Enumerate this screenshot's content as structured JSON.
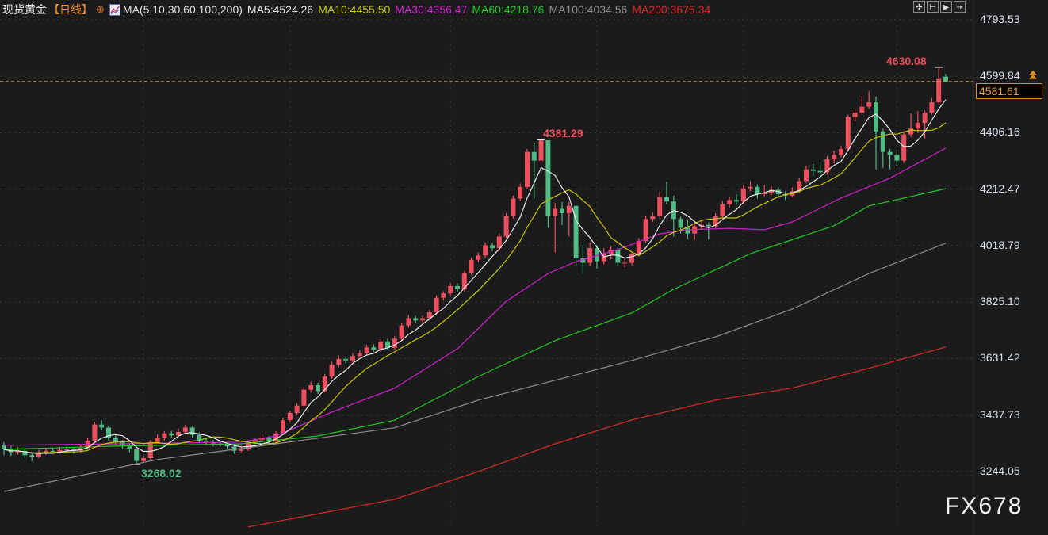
{
  "header": {
    "symbol": "现货黄金",
    "period": "【日线】",
    "settings_icon": "crosshair-circle-icon",
    "ma_icon": "indicator-chart-icon",
    "ma_params": "MA(5,10,30,60,100,200)",
    "ma5": "MA5:4524.26",
    "ma10": "MA10:4455.50",
    "ma30": "MA30:4356.47",
    "ma60": "MA60:4218.76",
    "ma100": "MA100:4034.56",
    "ma200": "MA200:3675.34"
  },
  "toolbar": {
    "icons": [
      "crosshair-icon",
      "zoom-range-icon",
      "play-forward-icon",
      "jump-to-end-icon"
    ]
  },
  "colors": {
    "background": "#1b1b1b",
    "up": "#ee4f5f",
    "down": "#4fba84",
    "ma5": "#e8e8e8",
    "ma10": "#c8c400",
    "ma30": "#d21ed2",
    "ma60": "#1ec81e",
    "ma100": "#8c8c8c",
    "ma200": "#e02828",
    "price_line": "#e09020"
  },
  "watermark": "FX678",
  "chart_data": {
    "type": "candlestick",
    "title": "",
    "ylim": [
      3059,
      4861
    ],
    "grid": true,
    "y_ticks": [
      "4793.53",
      "4599.84",
      "4406.16",
      "4212.47",
      "4018.79",
      "3825.10",
      "3631.42",
      "3437.73",
      "3244.05"
    ],
    "current_price": "4581.61",
    "annotations": {
      "high_peak1": "4381.29",
      "low": "3268.02",
      "high_latest": "4630.08"
    },
    "candles_ohlc": [
      [
        3335,
        3345,
        3300,
        3320
      ],
      [
        3320,
        3332,
        3298,
        3310
      ],
      [
        3310,
        3328,
        3302,
        3315
      ],
      [
        3315,
        3322,
        3290,
        3300
      ],
      [
        3300,
        3310,
        3280,
        3295
      ],
      [
        3295,
        3318,
        3290,
        3310
      ],
      [
        3310,
        3325,
        3302,
        3315
      ],
      [
        3315,
        3322,
        3305,
        3312
      ],
      [
        3312,
        3328,
        3306,
        3318
      ],
      [
        3318,
        3330,
        3310,
        3320
      ],
      [
        3320,
        3326,
        3306,
        3316
      ],
      [
        3316,
        3334,
        3310,
        3325
      ],
      [
        3325,
        3360,
        3320,
        3350
      ],
      [
        3350,
        3415,
        3345,
        3405
      ],
      [
        3405,
        3420,
        3385,
        3395
      ],
      [
        3395,
        3402,
        3350,
        3360
      ],
      [
        3360,
        3370,
        3335,
        3345
      ],
      [
        3345,
        3352,
        3322,
        3330
      ],
      [
        3330,
        3338,
        3310,
        3320
      ],
      [
        3320,
        3325,
        3268.02,
        3280
      ],
      [
        3280,
        3300,
        3275,
        3290
      ],
      [
        3290,
        3352,
        3285,
        3345
      ],
      [
        3345,
        3372,
        3340,
        3360
      ],
      [
        3360,
        3382,
        3350,
        3375
      ],
      [
        3375,
        3384,
        3360,
        3368
      ],
      [
        3368,
        3392,
        3362,
        3380
      ],
      [
        3380,
        3405,
        3372,
        3395
      ],
      [
        3395,
        3400,
        3362,
        3370
      ],
      [
        3370,
        3378,
        3342,
        3350
      ],
      [
        3350,
        3360,
        3335,
        3345
      ],
      [
        3345,
        3352,
        3330,
        3340
      ],
      [
        3340,
        3350,
        3330,
        3338
      ],
      [
        3338,
        3346,
        3322,
        3330
      ],
      [
        3330,
        3338,
        3305,
        3315
      ],
      [
        3315,
        3330,
        3308,
        3320
      ],
      [
        3320,
        3352,
        3315,
        3345
      ],
      [
        3345,
        3360,
        3338,
        3352
      ],
      [
        3352,
        3372,
        3345,
        3360
      ],
      [
        3360,
        3366,
        3340,
        3348
      ],
      [
        3348,
        3382,
        3342,
        3375
      ],
      [
        3375,
        3428,
        3370,
        3420
      ],
      [
        3420,
        3452,
        3412,
        3445
      ],
      [
        3445,
        3478,
        3438,
        3470
      ],
      [
        3470,
        3535,
        3462,
        3525
      ],
      [
        3525,
        3552,
        3515,
        3540
      ],
      [
        3540,
        3548,
        3510,
        3520
      ],
      [
        3520,
        3578,
        3515,
        3570
      ],
      [
        3570,
        3620,
        3562,
        3610
      ],
      [
        3610,
        3642,
        3602,
        3630
      ],
      [
        3630,
        3640,
        3615,
        3625
      ],
      [
        3625,
        3650,
        3618,
        3640
      ],
      [
        3640,
        3660,
        3632,
        3650
      ],
      [
        3650,
        3678,
        3645,
        3670
      ],
      [
        3670,
        3680,
        3655,
        3662
      ],
      [
        3662,
        3698,
        3655,
        3690
      ],
      [
        3690,
        3700,
        3660,
        3668
      ],
      [
        3668,
        3708,
        3662,
        3700
      ],
      [
        3700,
        3752,
        3694,
        3745
      ],
      [
        3745,
        3780,
        3738,
        3770
      ],
      [
        3770,
        3778,
        3752,
        3762
      ],
      [
        3762,
        3778,
        3755,
        3770
      ],
      [
        3770,
        3798,
        3762,
        3790
      ],
      [
        3790,
        3848,
        3782,
        3840
      ],
      [
        3840,
        3862,
        3830,
        3855
      ],
      [
        3855,
        3890,
        3848,
        3880
      ],
      [
        3880,
        3890,
        3860,
        3870
      ],
      [
        3870,
        3932,
        3862,
        3925
      ],
      [
        3925,
        3978,
        3918,
        3970
      ],
      [
        3970,
        3995,
        3962,
        3985
      ],
      [
        3985,
        4030,
        3978,
        4020
      ],
      [
        4020,
        4028,
        4000,
        4010
      ],
      [
        4010,
        4060,
        4002,
        4050
      ],
      [
        4050,
        4130,
        4045,
        4120
      ],
      [
        4120,
        4190,
        4112,
        4180
      ],
      [
        4180,
        4232,
        4172,
        4220
      ],
      [
        4220,
        4350,
        4212,
        4340
      ],
      [
        4340,
        4372,
        4180,
        4310
      ],
      [
        4310,
        4381.29,
        4300,
        4380
      ],
      [
        4380,
        4370,
        4080,
        4120
      ],
      [
        4120,
        4165,
        3995,
        4145
      ],
      [
        4145,
        4168,
        4090,
        4130
      ],
      [
        4130,
        4170,
        4050,
        4155
      ],
      [
        4155,
        4160,
        3950,
        3975
      ],
      [
        3975,
        4020,
        3925,
        3960
      ],
      [
        3960,
        4030,
        3950,
        4010
      ],
      [
        4010,
        4020,
        3940,
        3965
      ],
      [
        3965,
        4010,
        3955,
        3990
      ],
      [
        3990,
        4018,
        3972,
        4005
      ],
      [
        4005,
        4012,
        3950,
        3960
      ],
      [
        3960,
        3978,
        3945,
        3960
      ],
      [
        3960,
        3998,
        3952,
        3990
      ],
      [
        3990,
        4045,
        3982,
        4035
      ],
      [
        4035,
        4122,
        4028,
        4110
      ],
      [
        4110,
        4132,
        4100,
        4120
      ],
      [
        4120,
        4205,
        4112,
        4185
      ],
      [
        4185,
        4238,
        4160,
        4170
      ],
      [
        4170,
        4190,
        4050,
        4110
      ],
      [
        4110,
        4118,
        4060,
        4080
      ],
      [
        4080,
        4108,
        4040,
        4060
      ],
      [
        4060,
        4100,
        4040,
        4085
      ],
      [
        4085,
        4108,
        4075,
        4090
      ],
      [
        4090,
        4098,
        4040,
        4085
      ],
      [
        4085,
        4130,
        4078,
        4120
      ],
      [
        4120,
        4172,
        4112,
        4160
      ],
      [
        4160,
        4188,
        4150,
        4175
      ],
      [
        4175,
        4195,
        4160,
        4170
      ],
      [
        4170,
        4228,
        4162,
        4215
      ],
      [
        4215,
        4240,
        4205,
        4220
      ],
      [
        4220,
        4228,
        4180,
        4195
      ],
      [
        4195,
        4225,
        4188,
        4200
      ],
      [
        4200,
        4222,
        4192,
        4210
      ],
      [
        4210,
        4218,
        4182,
        4195
      ],
      [
        4195,
        4205,
        4175,
        4190
      ],
      [
        4190,
        4218,
        4185,
        4205
      ],
      [
        4205,
        4252,
        4198,
        4240
      ],
      [
        4240,
        4292,
        4232,
        4280
      ],
      [
        4280,
        4298,
        4258,
        4275
      ],
      [
        4275,
        4305,
        4250,
        4270
      ],
      [
        4270,
        4325,
        4262,
        4315
      ],
      [
        4315,
        4345,
        4300,
        4330
      ],
      [
        4330,
        4362,
        4322,
        4350
      ],
      [
        4350,
        4468,
        4342,
        4460
      ],
      [
        4460,
        4488,
        4445,
        4475
      ],
      [
        4475,
        4532,
        4468,
        4495
      ],
      [
        4495,
        4548,
        4488,
        4510
      ],
      [
        4510,
        4530,
        4280,
        4410
      ],
      [
        4410,
        4420,
        4285,
        4340
      ],
      [
        4340,
        4350,
        4280,
        4330
      ],
      [
        4330,
        4348,
        4292,
        4310
      ],
      [
        4310,
        4412,
        4302,
        4400
      ],
      [
        4400,
        4472,
        4392,
        4420
      ],
      [
        4420,
        4480,
        4405,
        4440
      ],
      [
        4440,
        4482,
        4385,
        4475
      ],
      [
        4475,
        4525,
        4468,
        4510
      ],
      [
        4510,
        4630.08,
        4505,
        4590
      ],
      [
        4598,
        4608,
        4578,
        4581.61
      ]
    ],
    "ma_lines": {
      "ma30": [
        [
          0,
          3334
        ],
        [
          16,
          3339
        ],
        [
          34,
          3345
        ],
        [
          39,
          3366
        ],
        [
          47,
          3448
        ],
        [
          56,
          3530
        ],
        [
          65,
          3665
        ],
        [
          72,
          3828
        ],
        [
          78,
          3923
        ],
        [
          82,
          3964
        ],
        [
          88,
          4005
        ],
        [
          94,
          4059
        ],
        [
          98,
          4073
        ],
        [
          104,
          4078
        ],
        [
          109,
          4073
        ],
        [
          113,
          4100
        ],
        [
          120,
          4182
        ],
        [
          127,
          4250
        ],
        [
          135,
          4353
        ]
      ],
      "ma60": [
        [
          0,
          3320
        ],
        [
          16,
          3331
        ],
        [
          34,
          3339
        ],
        [
          45,
          3366
        ],
        [
          56,
          3420
        ],
        [
          68,
          3570
        ],
        [
          79,
          3693
        ],
        [
          90,
          3788
        ],
        [
          96,
          3869
        ],
        [
          107,
          3991
        ],
        [
          119,
          4087
        ],
        [
          124,
          4155
        ],
        [
          135,
          4214
        ]
      ],
      "ma100": [
        [
          0,
          3176
        ],
        [
          22,
          3285
        ],
        [
          39,
          3339
        ],
        [
          56,
          3394
        ],
        [
          68,
          3489
        ],
        [
          79,
          3557
        ],
        [
          90,
          3625
        ],
        [
          102,
          3706
        ],
        [
          113,
          3801
        ],
        [
          124,
          3923
        ],
        [
          135,
          4027
        ]
      ],
      "ma200": [
        [
          35,
          3054
        ],
        [
          56,
          3149
        ],
        [
          68,
          3244
        ],
        [
          79,
          3339
        ],
        [
          90,
          3421
        ],
        [
          102,
          3489
        ],
        [
          113,
          3530
        ],
        [
          124,
          3598
        ],
        [
          135,
          3671
        ]
      ]
    }
  }
}
